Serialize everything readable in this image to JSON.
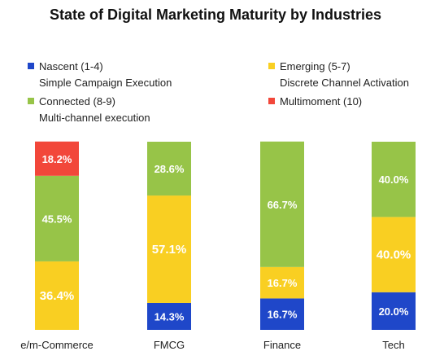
{
  "chart_data": {
    "type": "bar",
    "stacked": true,
    "title": "State of Digital Marketing Maturity by Industries",
    "categories": [
      "e/m-Commerce",
      "FMCG",
      "Finance",
      "Tech"
    ],
    "series": [
      {
        "name": "Nascent (1-4)",
        "description": "Simple Campaign Execution",
        "color": "#1f47c9",
        "values": [
          0,
          14.3,
          16.7,
          20.0
        ],
        "labels": [
          "",
          "14.3%",
          "16.7%",
          "20.0%"
        ]
      },
      {
        "name": "Emerging (5-7)",
        "description": "Discrete Channel Activation",
        "color": "#f9cf22",
        "values": [
          36.4,
          57.1,
          16.7,
          40.0
        ],
        "labels": [
          "36.4%",
          "57.1%",
          "16.7%",
          "40.0%"
        ]
      },
      {
        "name": "Connected (8-9)",
        "description": "Multi-channel execution",
        "color": "#97c448",
        "values": [
          45.5,
          28.6,
          66.7,
          40.0
        ],
        "labels": [
          "45.5%",
          "28.6%",
          "66.7%",
          "40.0%"
        ]
      },
      {
        "name": "Multimoment (10)",
        "description": "",
        "color": "#f2473a",
        "values": [
          18.2,
          0,
          0,
          0
        ],
        "labels": [
          "18.2%",
          "",
          "",
          ""
        ]
      }
    ],
    "ylim": [
      0,
      100
    ],
    "grid": false,
    "legend_placement": "top"
  }
}
